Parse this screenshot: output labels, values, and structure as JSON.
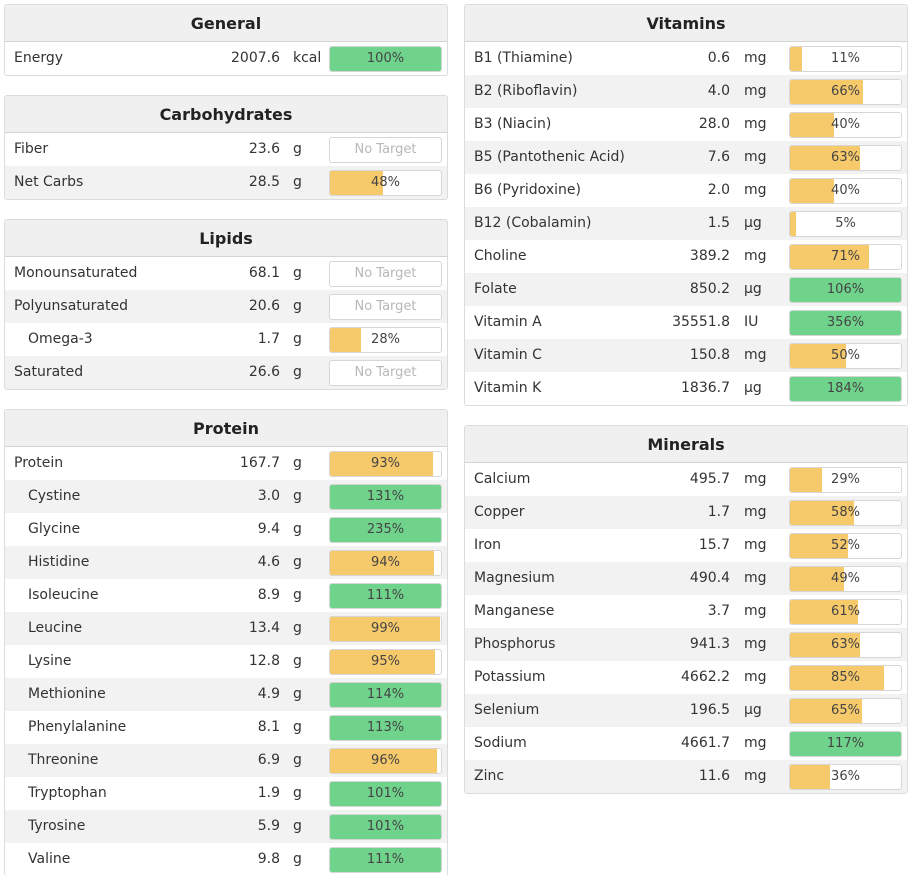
{
  "colors": {
    "green": "#6fd38c",
    "orange": "#f6c96b"
  },
  "general": {
    "title": "General",
    "rows": [
      {
        "name": "Energy",
        "amount": "2007.6",
        "unit": "kcal",
        "pct": "100%",
        "fill": 1.0,
        "color": "green"
      }
    ]
  },
  "carbs": {
    "title": "Carbohydrates",
    "rows": [
      {
        "name": "Fiber",
        "amount": "23.6",
        "unit": "g",
        "pct": "No Target",
        "fill": 0,
        "color": "none"
      },
      {
        "name": "Net Carbs",
        "amount": "28.5",
        "unit": "g",
        "pct": "48%",
        "fill": 0.48,
        "color": "orange"
      }
    ]
  },
  "lipids": {
    "title": "Lipids",
    "rows": [
      {
        "name": "Monounsaturated",
        "amount": "68.1",
        "unit": "g",
        "pct": "No Target",
        "fill": 0,
        "color": "none"
      },
      {
        "name": "Polyunsaturated",
        "amount": "20.6",
        "unit": "g",
        "pct": "No Target",
        "fill": 0,
        "color": "none"
      },
      {
        "name": "Omega-3",
        "amount": "1.7",
        "unit": "g",
        "pct": "28%",
        "fill": 0.28,
        "color": "orange",
        "sub": true
      },
      {
        "name": "Saturated",
        "amount": "26.6",
        "unit": "g",
        "pct": "No Target",
        "fill": 0,
        "color": "none"
      }
    ]
  },
  "protein": {
    "title": "Protein",
    "rows": [
      {
        "name": "Protein",
        "amount": "167.7",
        "unit": "g",
        "pct": "93%",
        "fill": 0.93,
        "color": "orange"
      },
      {
        "name": "Cystine",
        "amount": "3.0",
        "unit": "g",
        "pct": "131%",
        "fill": 1,
        "color": "green",
        "sub": true
      },
      {
        "name": "Glycine",
        "amount": "9.4",
        "unit": "g",
        "pct": "235%",
        "fill": 1,
        "color": "green",
        "sub": true
      },
      {
        "name": "Histidine",
        "amount": "4.6",
        "unit": "g",
        "pct": "94%",
        "fill": 0.94,
        "color": "orange",
        "sub": true
      },
      {
        "name": "Isoleucine",
        "amount": "8.9",
        "unit": "g",
        "pct": "111%",
        "fill": 1,
        "color": "green",
        "sub": true
      },
      {
        "name": "Leucine",
        "amount": "13.4",
        "unit": "g",
        "pct": "99%",
        "fill": 0.99,
        "color": "orange",
        "sub": true
      },
      {
        "name": "Lysine",
        "amount": "12.8",
        "unit": "g",
        "pct": "95%",
        "fill": 0.95,
        "color": "orange",
        "sub": true
      },
      {
        "name": "Methionine",
        "amount": "4.9",
        "unit": "g",
        "pct": "114%",
        "fill": 1,
        "color": "green",
        "sub": true
      },
      {
        "name": "Phenylalanine",
        "amount": "8.1",
        "unit": "g",
        "pct": "113%",
        "fill": 1,
        "color": "green",
        "sub": true
      },
      {
        "name": "Threonine",
        "amount": "6.9",
        "unit": "g",
        "pct": "96%",
        "fill": 0.96,
        "color": "orange",
        "sub": true
      },
      {
        "name": "Tryptophan",
        "amount": "1.9",
        "unit": "g",
        "pct": "101%",
        "fill": 1,
        "color": "green",
        "sub": true
      },
      {
        "name": "Tyrosine",
        "amount": "5.9",
        "unit": "g",
        "pct": "101%",
        "fill": 1,
        "color": "green",
        "sub": true
      },
      {
        "name": "Valine",
        "amount": "9.8",
        "unit": "g",
        "pct": "111%",
        "fill": 1,
        "color": "green",
        "sub": true
      }
    ]
  },
  "vitamins": {
    "title": "Vitamins",
    "rows": [
      {
        "name": "B1 (Thiamine)",
        "amount": "0.6",
        "unit": "mg",
        "pct": "11%",
        "fill": 0.11,
        "color": "orange"
      },
      {
        "name": "B2 (Riboflavin)",
        "amount": "4.0",
        "unit": "mg",
        "pct": "66%",
        "fill": 0.66,
        "color": "orange"
      },
      {
        "name": "B3 (Niacin)",
        "amount": "28.0",
        "unit": "mg",
        "pct": "40%",
        "fill": 0.4,
        "color": "orange"
      },
      {
        "name": "B5 (Pantothenic Acid)",
        "amount": "7.6",
        "unit": "mg",
        "pct": "63%",
        "fill": 0.63,
        "color": "orange"
      },
      {
        "name": "B6 (Pyridoxine)",
        "amount": "2.0",
        "unit": "mg",
        "pct": "40%",
        "fill": 0.4,
        "color": "orange"
      },
      {
        "name": "B12 (Cobalamin)",
        "amount": "1.5",
        "unit": "µg",
        "pct": "5%",
        "fill": 0.05,
        "color": "orange"
      },
      {
        "name": "Choline",
        "amount": "389.2",
        "unit": "mg",
        "pct": "71%",
        "fill": 0.71,
        "color": "orange"
      },
      {
        "name": "Folate",
        "amount": "850.2",
        "unit": "µg",
        "pct": "106%",
        "fill": 1,
        "color": "green"
      },
      {
        "name": "Vitamin A",
        "amount": "35551.8",
        "unit": "IU",
        "pct": "356%",
        "fill": 1,
        "color": "green"
      },
      {
        "name": "Vitamin C",
        "amount": "150.8",
        "unit": "mg",
        "pct": "50%",
        "fill": 0.5,
        "color": "orange"
      },
      {
        "name": "Vitamin K",
        "amount": "1836.7",
        "unit": "µg",
        "pct": "184%",
        "fill": 1,
        "color": "green"
      }
    ]
  },
  "minerals": {
    "title": "Minerals",
    "rows": [
      {
        "name": "Calcium",
        "amount": "495.7",
        "unit": "mg",
        "pct": "29%",
        "fill": 0.29,
        "color": "orange"
      },
      {
        "name": "Copper",
        "amount": "1.7",
        "unit": "mg",
        "pct": "58%",
        "fill": 0.58,
        "color": "orange"
      },
      {
        "name": "Iron",
        "amount": "15.7",
        "unit": "mg",
        "pct": "52%",
        "fill": 0.52,
        "color": "orange"
      },
      {
        "name": "Magnesium",
        "amount": "490.4",
        "unit": "mg",
        "pct": "49%",
        "fill": 0.49,
        "color": "orange"
      },
      {
        "name": "Manganese",
        "amount": "3.7",
        "unit": "mg",
        "pct": "61%",
        "fill": 0.61,
        "color": "orange"
      },
      {
        "name": "Phosphorus",
        "amount": "941.3",
        "unit": "mg",
        "pct": "63%",
        "fill": 0.63,
        "color": "orange"
      },
      {
        "name": "Potassium",
        "amount": "4662.2",
        "unit": "mg",
        "pct": "85%",
        "fill": 0.85,
        "color": "orange"
      },
      {
        "name": "Selenium",
        "amount": "196.5",
        "unit": "µg",
        "pct": "65%",
        "fill": 0.65,
        "color": "orange"
      },
      {
        "name": "Sodium",
        "amount": "4661.7",
        "unit": "mg",
        "pct": "117%",
        "fill": 1,
        "color": "green"
      },
      {
        "name": "Zinc",
        "amount": "11.6",
        "unit": "mg",
        "pct": "36%",
        "fill": 0.36,
        "color": "orange"
      }
    ]
  }
}
